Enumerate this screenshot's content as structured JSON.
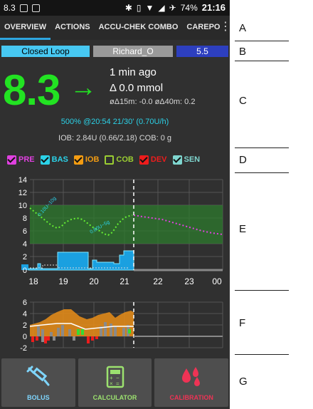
{
  "status_bar": {
    "left_text": "8.3",
    "battery": "74%",
    "time": "21:16"
  },
  "tabs": [
    {
      "label": "OVERVIEW",
      "active": true
    },
    {
      "label": "ACTIONS"
    },
    {
      "label": "ACCU-CHEK COMBO"
    },
    {
      "label": "CAREPO"
    }
  ],
  "loop_bar": {
    "mode": "Closed Loop",
    "profile": "Richard_O",
    "target": "5.5"
  },
  "bg": {
    "value": "8.3",
    "arrow": "→",
    "time_ago": "1 min ago",
    "delta": "Δ 0.0 mmol",
    "avg_delta": "øΔ15m: -0.0  øΔ40m: 0.2"
  },
  "tbr": "500% @20:54 21/30' (0.70U/h)",
  "iob_cob": "IOB: 2.84U (0.66/2.18)   COB: 0 g",
  "legend": [
    {
      "label": "PRE",
      "color": "#e040e0",
      "checked": true
    },
    {
      "label": "BAS",
      "color": "#2bd2e8",
      "checked": true
    },
    {
      "label": "IOB",
      "color": "#f39c12",
      "checked": true
    },
    {
      "label": "COB",
      "color": "#9acd32",
      "checked": false
    },
    {
      "label": "DEV",
      "color": "#ee1c1c",
      "checked": true
    },
    {
      "label": "SEN",
      "color": "#7fd6cf",
      "checked": true
    }
  ],
  "main_chart": {
    "y_ticks": [
      "14",
      "12",
      "10",
      "8",
      "6",
      "4",
      "2",
      "0"
    ],
    "x_ticks": [
      "18",
      "19",
      "20",
      "21",
      "22",
      "23",
      "00"
    ],
    "annotations": [
      "0.10U~10g",
      "0.80U~5g"
    ]
  },
  "sub_chart": {
    "y_ticks": [
      "6",
      "4",
      "2",
      "0",
      "-2"
    ]
  },
  "buttons": [
    {
      "label": "BOLUS",
      "color": "#7fd6ff",
      "icon": "syringe-icon"
    },
    {
      "label": "CALCULATOR",
      "color": "#9ce26f",
      "icon": "calculator-icon"
    },
    {
      "label": "CALIBRATION",
      "color": "#ee3355",
      "icon": "drops-icon"
    }
  ],
  "annotations": [
    "A",
    "B",
    "C",
    "D",
    "E",
    "F",
    "G"
  ],
  "colors": {
    "bg_green": "#22e322",
    "tab_underline": "#2ea6e0",
    "loop_blue": "#47c8f2",
    "target_blue": "#2d3fbf"
  }
}
